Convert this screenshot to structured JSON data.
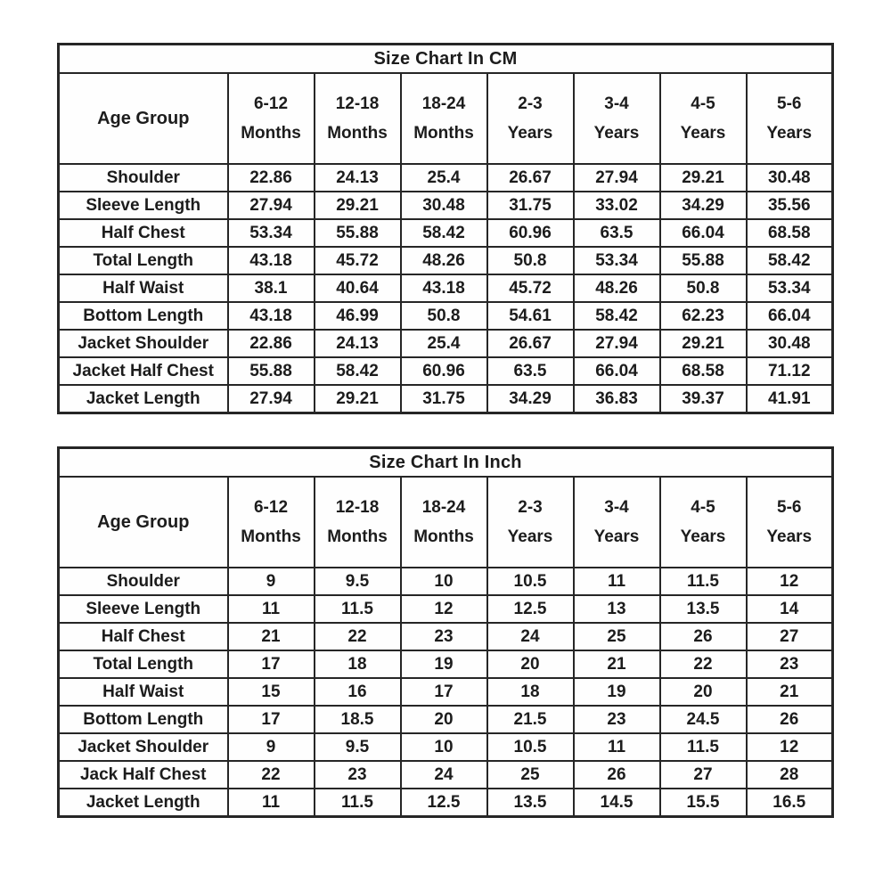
{
  "colors": {
    "background": "#ffffff",
    "border": "#262626",
    "text": "#1c1c1c"
  },
  "tables": [
    {
      "title": "Size Chart In CM",
      "header": {
        "label": "Age Group",
        "columns": [
          {
            "line1": "6-12",
            "line2": "Months"
          },
          {
            "line1": "12-18",
            "line2": "Months"
          },
          {
            "line1": "18-24",
            "line2": "Months"
          },
          {
            "line1": "2-3",
            "line2": "Years"
          },
          {
            "line1": "3-4",
            "line2": "Years"
          },
          {
            "line1": "4-5",
            "line2": "Years"
          },
          {
            "line1": "5-6",
            "line2": "Years"
          }
        ]
      },
      "rows": [
        {
          "label": "Shoulder",
          "values": [
            "22.86",
            "24.13",
            "25.4",
            "26.67",
            "27.94",
            "29.21",
            "30.48"
          ]
        },
        {
          "label": "Sleeve Length",
          "values": [
            "27.94",
            "29.21",
            "30.48",
            "31.75",
            "33.02",
            "34.29",
            "35.56"
          ]
        },
        {
          "label": "Half Chest",
          "values": [
            "53.34",
            "55.88",
            "58.42",
            "60.96",
            "63.5",
            "66.04",
            "68.58"
          ]
        },
        {
          "label": "Total Length",
          "values": [
            "43.18",
            "45.72",
            "48.26",
            "50.8",
            "53.34",
            "55.88",
            "58.42"
          ]
        },
        {
          "label": "Half Waist",
          "values": [
            "38.1",
            "40.64",
            "43.18",
            "45.72",
            "48.26",
            "50.8",
            "53.34"
          ]
        },
        {
          "label": "Bottom Length",
          "values": [
            "43.18",
            "46.99",
            "50.8",
            "54.61",
            "58.42",
            "62.23",
            "66.04"
          ]
        },
        {
          "label": "Jacket Shoulder",
          "values": [
            "22.86",
            "24.13",
            "25.4",
            "26.67",
            "27.94",
            "29.21",
            "30.48"
          ]
        },
        {
          "label": "Jacket Half Chest",
          "values": [
            "55.88",
            "58.42",
            "60.96",
            "63.5",
            "66.04",
            "68.58",
            "71.12"
          ]
        },
        {
          "label": "Jacket Length",
          "values": [
            "27.94",
            "29.21",
            "31.75",
            "34.29",
            "36.83",
            "39.37",
            "41.91"
          ]
        }
      ]
    },
    {
      "title": "Size Chart In Inch",
      "header": {
        "label": "Age Group",
        "columns": [
          {
            "line1": "6-12",
            "line2": "Months"
          },
          {
            "line1": "12-18",
            "line2": "Months"
          },
          {
            "line1": "18-24",
            "line2": "Months"
          },
          {
            "line1": "2-3",
            "line2": "Years"
          },
          {
            "line1": "3-4",
            "line2": "Years"
          },
          {
            "line1": "4-5",
            "line2": "Years"
          },
          {
            "line1": "5-6",
            "line2": "Years"
          }
        ]
      },
      "rows": [
        {
          "label": "Shoulder",
          "values": [
            "9",
            "9.5",
            "10",
            "10.5",
            "11",
            "11.5",
            "12"
          ]
        },
        {
          "label": "Sleeve Length",
          "values": [
            "11",
            "11.5",
            "12",
            "12.5",
            "13",
            "13.5",
            "14"
          ]
        },
        {
          "label": "Half Chest",
          "values": [
            "21",
            "22",
            "23",
            "24",
            "25",
            "26",
            "27"
          ]
        },
        {
          "label": "Total Length",
          "values": [
            "17",
            "18",
            "19",
            "20",
            "21",
            "22",
            "23"
          ]
        },
        {
          "label": "Half Waist",
          "values": [
            "15",
            "16",
            "17",
            "18",
            "19",
            "20",
            "21"
          ]
        },
        {
          "label": "Bottom Length",
          "values": [
            "17",
            "18.5",
            "20",
            "21.5",
            "23",
            "24.5",
            "26"
          ]
        },
        {
          "label": "Jacket Shoulder",
          "values": [
            "9",
            "9.5",
            "10",
            "10.5",
            "11",
            "11.5",
            "12"
          ]
        },
        {
          "label": "Jack Half Chest",
          "values": [
            "22",
            "23",
            "24",
            "25",
            "26",
            "27",
            "28"
          ]
        },
        {
          "label": "Jacket Length",
          "values": [
            "11",
            "11.5",
            "12.5",
            "13.5",
            "14.5",
            "15.5",
            "16.5"
          ]
        }
      ]
    }
  ]
}
